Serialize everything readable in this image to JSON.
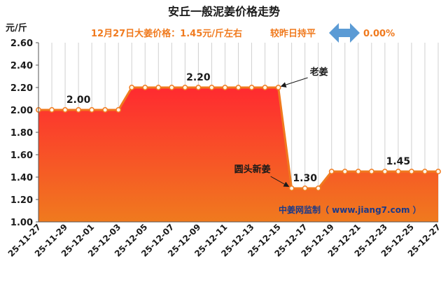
{
  "header": {
    "title": "安丘一般泥姜价格走势",
    "price_text": "12月27日大姜价格：1.45元/斤左右",
    "compare_text": "较昨日持平",
    "change_value": "0.00%",
    "unit_label": "元/斤"
  },
  "watermark": "中姜网监制（ www.jiang7.com ）",
  "colors": {
    "line": "#f07a1e",
    "fill_top": "#ff2a30",
    "fill_bottom": "#f07a1e",
    "arrow": "#5b9bd5",
    "subtitle": "#f07a1e",
    "watermark": "#1a3a8a"
  },
  "chart_data": {
    "type": "area",
    "x": [
      "25-11-27",
      "25-11-28",
      "25-11-29",
      "25-11-30",
      "25-12-01",
      "25-12-02",
      "25-12-03",
      "25-12-04",
      "25-12-05",
      "25-12-06",
      "25-12-07",
      "25-12-08",
      "25-12-09",
      "25-12-10",
      "25-12-11",
      "25-12-12",
      "25-12-13",
      "25-12-14",
      "25-12-15",
      "25-12-16",
      "25-12-17",
      "25-12-18",
      "25-12-19",
      "25-12-20",
      "25-12-21",
      "25-12-22",
      "25-12-23",
      "25-12-24",
      "25-12-25",
      "25-12-26",
      "25-12-27"
    ],
    "xticks": [
      "25-11-27",
      "25-11-29",
      "25-12-01",
      "25-12-03",
      "25-12-05",
      "25-12-07",
      "25-12-09",
      "25-12-11",
      "25-12-13",
      "25-12-15",
      "25-12-17",
      "25-12-19",
      "25-12-21",
      "25-12-23",
      "25-12-25",
      "25-12-27"
    ],
    "values": [
      2.0,
      2.0,
      2.0,
      2.0,
      2.0,
      2.0,
      2.0,
      2.2,
      2.2,
      2.2,
      2.2,
      2.2,
      2.2,
      2.2,
      2.2,
      2.2,
      2.2,
      2.2,
      2.2,
      1.3,
      1.3,
      1.3,
      1.45,
      1.45,
      1.45,
      1.45,
      1.45,
      1.45,
      1.45,
      1.45,
      1.45
    ],
    "ylim": [
      1.0,
      2.6
    ],
    "yticks": [
      "1.00",
      "1.20",
      "1.40",
      "1.60",
      "1.80",
      "2.00",
      "2.20",
      "2.40",
      "2.60"
    ],
    "grid": "vertical",
    "data_labels": [
      {
        "index": 3,
        "text": "2.00"
      },
      {
        "index": 12,
        "text": "2.20"
      },
      {
        "index": 20,
        "text": "1.30"
      },
      {
        "index": 27,
        "text": "1.45"
      }
    ],
    "annotations": [
      {
        "text": "老姜",
        "index": 18
      },
      {
        "text": "圆头新姜",
        "index": 19
      }
    ]
  }
}
